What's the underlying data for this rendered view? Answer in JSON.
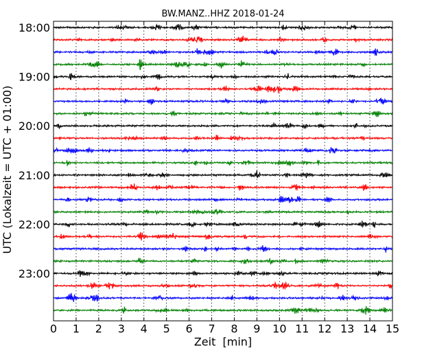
{
  "chart_data": {
    "type": "line",
    "subtype": "helicorder",
    "title": "BW.MANZ..HHZ 2018-01-24",
    "xlabel": "Zeit  [min]",
    "ylabel": "UTC (Lokalzeit = UTC + 01:00)",
    "xlim": [
      0,
      15
    ],
    "x_ticks": [
      0,
      1,
      2,
      3,
      4,
      5,
      6,
      7,
      8,
      9,
      10,
      11,
      12,
      13,
      14,
      15
    ],
    "x_tick_labels": [
      "0",
      "1",
      "2",
      "3",
      "4",
      "5",
      "6",
      "7",
      "8",
      "9",
      "10",
      "11",
      "12",
      "13",
      "14",
      "15"
    ],
    "vertical_grid": "dotted, every 1 min",
    "rows_per_hour": 4,
    "minutes_per_row": 15,
    "start_time": "18:00",
    "y_tick_labels": [
      "18:00",
      "19:00",
      "20:00",
      "21:00",
      "22:00",
      "23:00"
    ],
    "trace_colors": [
      "#000000",
      "#ff0000",
      "#0000ff",
      "#008000"
    ],
    "rows": [
      "18:00",
      "18:15",
      "18:30",
      "18:45",
      "19:00",
      "19:15",
      "19:30",
      "19:45",
      "20:00",
      "20:15",
      "20:30",
      "20:45",
      "21:00",
      "21:15",
      "21:30",
      "21:45",
      "22:00",
      "22:15",
      "22:30",
      "22:45",
      "23:00",
      "23:15",
      "23:30",
      "23:45"
    ]
  }
}
